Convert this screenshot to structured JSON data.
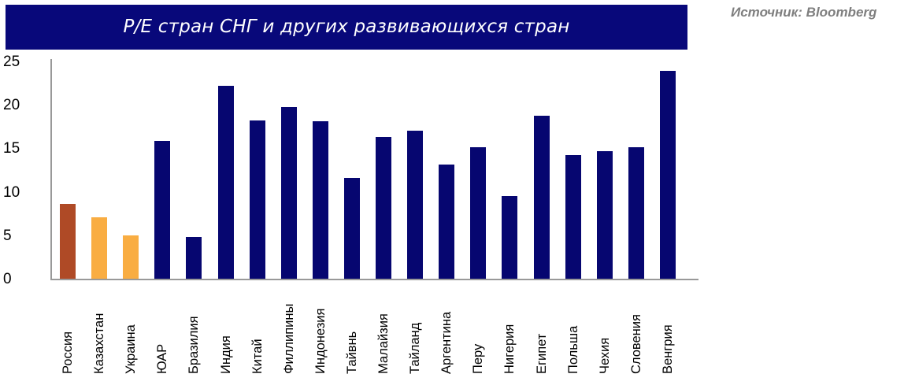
{
  "title": "P/E стран СНГ и других развивающихся стран",
  "source": "Источник: Bloomberg",
  "colors": {
    "banner": "#08087A",
    "default_bar": "#060670",
    "russia": "#AF4A26",
    "cis_other": "#F9AD42",
    "axis": "#999999",
    "source_text": "#7f7f7f"
  },
  "chart_data": {
    "type": "bar",
    "title": "P/E стран СНГ и других развивающихся стран",
    "xlabel": "",
    "ylabel": "",
    "ylim": [
      0,
      25
    ],
    "yticks": [
      0,
      5,
      10,
      15,
      20,
      25
    ],
    "grid": false,
    "legend": null,
    "categories": [
      "Россия",
      "Казахстан",
      "Украина",
      "ЮАР",
      "Бразилия",
      "Индия",
      "Китай",
      "Филлипины",
      "Индонезия",
      "Тайвнь",
      "Малайзия",
      "Тайланд",
      "Аргентина",
      "Перу",
      "Нигерия",
      "Египет",
      "Польша",
      "Чехия",
      "Словения",
      "Венгрия"
    ],
    "values": [
      8.7,
      7.2,
      5.1,
      15.9,
      4.9,
      22.3,
      18.3,
      19.8,
      18.2,
      11.7,
      16.4,
      17.1,
      13.2,
      15.2,
      9.6,
      18.8,
      14.3,
      14.8,
      15.2,
      24.0
    ],
    "bar_colors": [
      "#AF4A26",
      "#F9AD42",
      "#F9AD42",
      "#060670",
      "#060670",
      "#060670",
      "#060670",
      "#060670",
      "#060670",
      "#060670",
      "#060670",
      "#060670",
      "#060670",
      "#060670",
      "#060670",
      "#060670",
      "#060670",
      "#060670",
      "#060670",
      "#060670"
    ],
    "source": "Источник: Bloomberg"
  }
}
